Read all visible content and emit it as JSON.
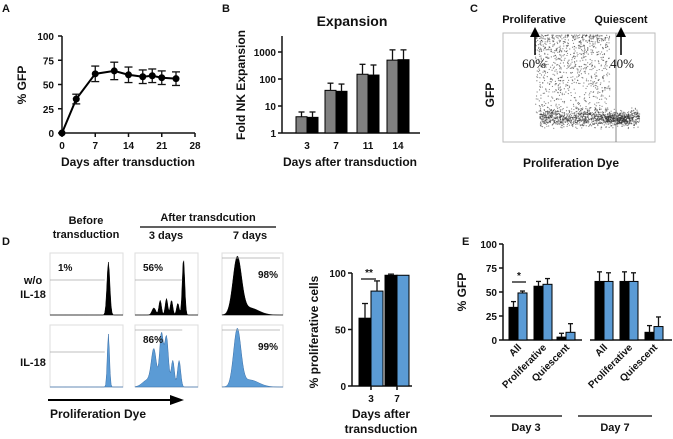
{
  "colors": {
    "black": "#000000",
    "gray": "#808080",
    "blue": "#5b9bd5",
    "axis": "#111111"
  },
  "panel_labels": [
    "A",
    "B",
    "C",
    "D",
    "E"
  ],
  "chart_data": [
    {
      "id": "A",
      "type": "line",
      "xlabel": "Days after transduction",
      "ylabel": "% GFP",
      "xlim": [
        0,
        28
      ],
      "ylim": [
        0,
        100
      ],
      "xticks": [
        "0",
        "7",
        "14",
        "21",
        "28"
      ],
      "yticks": [
        "0",
        "25",
        "50",
        "75",
        "100"
      ],
      "x": [
        0,
        3,
        7,
        11,
        14,
        17,
        19,
        21,
        24
      ],
      "y": [
        0,
        35,
        61,
        64,
        60,
        58,
        59,
        57,
        56
      ],
      "err": [
        0,
        5,
        8,
        9,
        8,
        7,
        7,
        7,
        7
      ]
    },
    {
      "id": "B",
      "type": "bar",
      "title": "Expansion",
      "xlabel": "Days after transduction",
      "ylabel": "Fold NK Expansion",
      "yscale": "log",
      "ylim": [
        1,
        4000
      ],
      "categories": [
        "3",
        "7",
        "11",
        "14"
      ],
      "yticks": [
        "1",
        "10",
        "100",
        "1000"
      ],
      "series": [
        {
          "name": "gray",
          "values": [
            4,
            38,
            150,
            500
          ],
          "err": [
            6,
            70,
            350,
            1200
          ]
        },
        {
          "name": "black",
          "values": [
            3.8,
            35,
            140,
            520
          ],
          "err": [
            6,
            65,
            330,
            1200
          ]
        }
      ]
    },
    {
      "id": "C",
      "type": "scatter",
      "xlabel": "Proliferation Dye",
      "ylabel": "GFP",
      "gates": [
        "Proliferative",
        "Quiescent"
      ],
      "percents": [
        "60%",
        "40%"
      ]
    },
    {
      "id": "D",
      "type": "histogram",
      "col_headers": {
        "before": [
          "Before",
          "transduction"
        ],
        "after": "After transdcution",
        "days": [
          "3 days",
          "7 days"
        ]
      },
      "row_labels": [
        [
          "w/o",
          "IL-18"
        ],
        [
          "IL-18"
        ]
      ],
      "percents": [
        [
          "1%",
          "56%",
          "98%"
        ],
        [
          "",
          "86%",
          "99%"
        ]
      ],
      "xlabel": "Proliferation Dye"
    },
    {
      "id": "D-bar",
      "type": "bar",
      "ylabel": "% proliferative cells",
      "xlabel": [
        "Days after",
        "transduction"
      ],
      "ylim": [
        0,
        100
      ],
      "categories": [
        "3",
        "7"
      ],
      "yticks": [
        "0",
        "50",
        "100"
      ],
      "significance": "**",
      "series": [
        {
          "name": "black",
          "values": [
            60,
            98
          ],
          "err": [
            13,
            1
          ]
        },
        {
          "name": "blue",
          "values": [
            84,
            98
          ],
          "err": [
            9,
            0
          ]
        }
      ]
    },
    {
      "id": "E",
      "type": "bar",
      "ylabel": "% GFP",
      "ylim": [
        0,
        100
      ],
      "yticks": [
        "0",
        "25",
        "50",
        "75",
        "100"
      ],
      "significance": "*",
      "groups": [
        "Day 3",
        "Day 7"
      ],
      "categories": [
        "All",
        "Proliferative",
        "Quiescent",
        "All",
        "Proliferative",
        "Quiescent"
      ],
      "series": [
        {
          "name": "black",
          "values": [
            34,
            56,
            3,
            61,
            61,
            8
          ],
          "err": [
            6,
            5,
            4,
            10,
            10,
            7
          ]
        },
        {
          "name": "blue",
          "values": [
            49,
            58,
            8,
            61,
            61,
            14
          ],
          "err": [
            2,
            6,
            9,
            9,
            9,
            10
          ]
        }
      ]
    }
  ]
}
